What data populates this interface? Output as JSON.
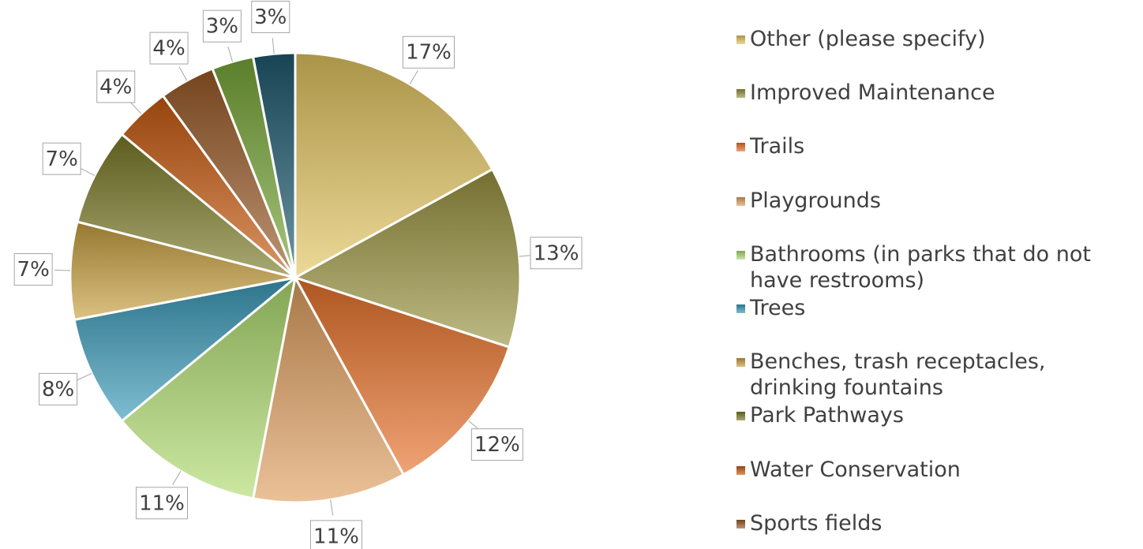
{
  "chart_data": {
    "type": "pie",
    "categories": [
      "Other (please specify)",
      "Improved Maintenance",
      "Trails",
      "Playgrounds",
      "Bathrooms (in parks that do not have restrooms)",
      "Trees",
      "Benches, trash receptacles, drinking fountains",
      "Park Pathways",
      "Water Conservation",
      "Sports fields",
      null,
      null
    ],
    "values": [
      17,
      13,
      12,
      11,
      11,
      8,
      7,
      7,
      4,
      4,
      3,
      3
    ],
    "value_labels": [
      "17%",
      "13%",
      "12%",
      "11%",
      "11%",
      "8%",
      "7%",
      "7%",
      "4%",
      "4%",
      "3%",
      "3%"
    ],
    "colors": [
      "#e3c560",
      "#9a9440",
      "#e8722a",
      "#e0a060",
      "#b0dc70",
      "#3a9ab8",
      "#c8a040",
      "#7a7a28",
      "#c85a10",
      "#9a5a28",
      "#78a838",
      "#1e5a70"
    ],
    "legend": "right"
  }
}
